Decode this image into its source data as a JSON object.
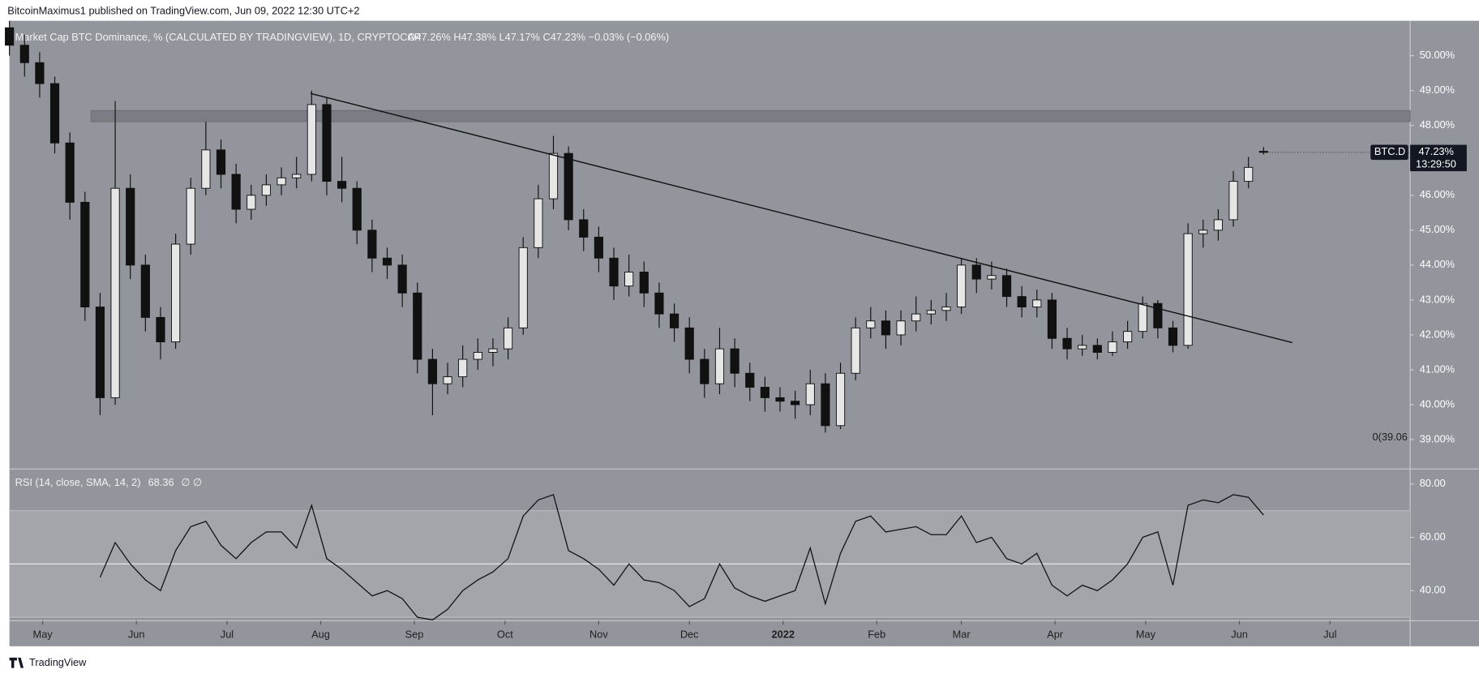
{
  "chart_data": {
    "type": "candlestick",
    "header": "BitcoinMaximus1 published on TradingView.com, Jun 09, 2022 12:30 UTC+2",
    "title": "Market Cap BTC Dominance, % (CALCULATED BY TRADINGVIEW), 1D, CRYPTOCAP",
    "ohlc_label": "O47.26% H47.38% L47.17% C47.23% −0.03% (−0.06%)",
    "footer": "TradingView",
    "x": [
      0,
      5,
      10,
      15,
      20,
      25,
      30,
      35,
      40,
      45,
      50,
      55,
      60,
      65,
      70,
      75,
      80,
      85,
      90,
      95,
      100,
      105,
      110,
      115,
      120,
      125,
      130,
      135,
      140,
      145,
      150,
      155,
      160,
      165,
      170,
      175,
      180,
      185,
      190,
      195,
      200,
      205,
      210,
      215,
      220,
      225,
      230,
      235,
      240,
      245,
      250,
      255,
      260,
      265,
      270,
      275,
      280,
      285,
      290,
      295,
      300,
      305,
      310,
      315,
      320,
      325,
      330,
      335,
      340,
      345,
      350,
      355,
      360,
      365,
      370,
      375,
      380,
      385,
      390,
      395,
      400,
      405,
      410,
      415
    ],
    "open": [
      50.8,
      50.3,
      49.8,
      49.2,
      47.5,
      45.8,
      42.8,
      40.2,
      46.2,
      44.0,
      42.5,
      41.8,
      44.6,
      46.2,
      47.3,
      46.6,
      45.6,
      46.0,
      46.3,
      46.5,
      46.6,
      48.6,
      46.4,
      46.2,
      45.0,
      44.2,
      44.0,
      43.2,
      41.3,
      40.6,
      40.8,
      41.3,
      41.5,
      41.6,
      42.2,
      44.5,
      45.9,
      47.2,
      45.3,
      44.8,
      44.2,
      43.4,
      43.8,
      43.2,
      42.6,
      42.2,
      41.3,
      40.6,
      41.6,
      40.9,
      40.5,
      40.2,
      40.1,
      40.0,
      40.6,
      39.4,
      40.9,
      42.2,
      42.4,
      42.0,
      42.4,
      42.6,
      42.7,
      42.8,
      44.0,
      43.6,
      43.7,
      43.1,
      42.8,
      43.0,
      41.9,
      41.6,
      41.7,
      41.5,
      41.8,
      42.1,
      42.9,
      42.2,
      41.7,
      44.9,
      45.0,
      45.3,
      46.4,
      47.26
    ],
    "high": [
      51.0,
      50.6,
      50.1,
      49.4,
      47.8,
      46.1,
      43.2,
      48.7,
      46.6,
      44.3,
      42.8,
      44.9,
      46.5,
      48.1,
      47.6,
      46.9,
      46.3,
      46.6,
      46.8,
      47.1,
      49.0,
      48.8,
      47.1,
      46.4,
      45.3,
      44.5,
      44.3,
      43.5,
      41.6,
      41.2,
      41.7,
      41.9,
      41.9,
      42.5,
      44.8,
      46.3,
      47.7,
      47.4,
      45.6,
      45.1,
      44.5,
      44.3,
      44.1,
      43.5,
      42.9,
      42.5,
      41.6,
      42.2,
      41.9,
      41.2,
      40.8,
      40.5,
      40.4,
      41.0,
      40.9,
      41.2,
      42.5,
      42.8,
      42.7,
      42.7,
      43.1,
      43.0,
      43.2,
      44.2,
      44.2,
      44.1,
      43.9,
      43.4,
      43.3,
      43.2,
      42.2,
      42.0,
      41.9,
      42.1,
      42.4,
      43.1,
      43.0,
      42.4,
      45.2,
      45.3,
      45.6,
      46.7,
      47.1,
      47.38
    ],
    "low": [
      50.0,
      49.4,
      48.8,
      47.2,
      45.3,
      42.4,
      39.7,
      40.0,
      43.6,
      42.1,
      41.3,
      41.6,
      44.3,
      46.0,
      46.2,
      45.2,
      45.3,
      45.7,
      46.0,
      46.2,
      46.4,
      46.0,
      45.8,
      44.6,
      43.8,
      43.6,
      42.8,
      40.9,
      39.7,
      40.3,
      40.5,
      41.0,
      41.1,
      41.3,
      42.0,
      44.2,
      45.6,
      45.0,
      44.4,
      43.8,
      43.0,
      43.1,
      42.8,
      42.2,
      41.8,
      40.9,
      40.2,
      40.3,
      40.5,
      40.1,
      39.8,
      39.8,
      39.6,
      39.7,
      39.2,
      39.3,
      40.7,
      41.9,
      41.6,
      41.7,
      42.1,
      42.3,
      42.4,
      42.6,
      43.2,
      43.3,
      42.8,
      42.5,
      42.5,
      41.6,
      41.3,
      41.4,
      41.3,
      41.4,
      41.6,
      41.9,
      41.9,
      41.5,
      41.6,
      44.5,
      44.7,
      45.1,
      46.2,
      47.17
    ],
    "close": [
      50.3,
      49.8,
      49.2,
      47.5,
      45.8,
      42.8,
      40.2,
      46.2,
      44.0,
      42.5,
      41.8,
      44.6,
      46.2,
      47.3,
      46.6,
      45.6,
      46.0,
      46.3,
      46.5,
      46.6,
      48.6,
      46.4,
      46.2,
      45.0,
      44.2,
      44.0,
      43.2,
      41.3,
      40.6,
      40.8,
      41.3,
      41.5,
      41.6,
      42.2,
      44.5,
      45.9,
      47.2,
      45.3,
      44.8,
      44.2,
      43.4,
      43.8,
      43.2,
      42.6,
      42.2,
      41.3,
      40.6,
      41.6,
      40.9,
      40.5,
      40.2,
      40.1,
      40.0,
      40.6,
      39.4,
      40.9,
      42.2,
      42.4,
      42.0,
      42.4,
      42.6,
      42.7,
      42.8,
      44.0,
      43.6,
      43.7,
      43.1,
      42.8,
      43.0,
      41.9,
      41.6,
      41.7,
      41.5,
      41.8,
      42.1,
      42.9,
      42.2,
      41.7,
      44.9,
      45.0,
      45.3,
      46.4,
      46.8,
      47.23
    ],
    "up_color": "#e6e6e6",
    "down_color": "#111111",
    "xlim": [
      0,
      463.5
    ],
    "xticks": [
      {
        "value": 11,
        "label": "May"
      },
      {
        "value": 42,
        "label": "Jun"
      },
      {
        "value": 72,
        "label": "Jul"
      },
      {
        "value": 103,
        "label": "Aug"
      },
      {
        "value": 134,
        "label": "Sep"
      },
      {
        "value": 164,
        "label": "Oct"
      },
      {
        "value": 195,
        "label": "Nov"
      },
      {
        "value": 225,
        "label": "Dec"
      },
      {
        "value": 256,
        "label": "2022"
      },
      {
        "value": 287,
        "label": "Feb"
      },
      {
        "value": 315,
        "label": "Mar"
      },
      {
        "value": 346,
        "label": "Apr"
      },
      {
        "value": 376,
        "label": "May"
      },
      {
        "value": 407,
        "label": "Jun"
      },
      {
        "value": 437,
        "label": "Jul"
      }
    ],
    "ylim": [
      38.16,
      51.0
    ],
    "yticks": [
      {
        "value": 39,
        "label": "39.00%"
      },
      {
        "value": 40,
        "label": "40.00%"
      },
      {
        "value": 41,
        "label": "41.00%"
      },
      {
        "value": 42,
        "label": "42.00%"
      },
      {
        "value": 43,
        "label": "43.00%"
      },
      {
        "value": 44,
        "label": "44.00%"
      },
      {
        "value": 45,
        "label": "45.00%"
      },
      {
        "value": 46,
        "label": "46.00%"
      },
      {
        "value": 47,
        "label": "47.00%"
      },
      {
        "value": 48,
        "label": "48.00%"
      },
      {
        "value": 49,
        "label": "49.00%"
      },
      {
        "value": 50,
        "label": "50.00%"
      }
    ],
    "trendline": {
      "x": [
        99.6,
        424.5
      ],
      "y": [
        48.92,
        41.78
      ]
    },
    "zone": {
      "x": [
        27,
        463.5
      ],
      "y": [
        48.11,
        48.43
      ]
    },
    "fib_level": {
      "value": 39.06,
      "label": "0(39.06"
    },
    "last_price": {
      "symbol": "BTC.D",
      "value": 47.23,
      "label": "47.23%",
      "countdown": "13:29:50"
    },
    "rsi": {
      "title": "RSI (14, close, SMA, 14, 2)",
      "value_label": "68.36",
      "flags": "∅ ∅",
      "color": "#111111",
      "values": [
        null,
        null,
        null,
        null,
        null,
        null,
        45,
        58,
        50,
        44,
        40,
        55,
        64,
        66,
        57,
        52,
        58,
        62,
        62,
        56,
        72,
        52,
        48,
        43,
        38,
        40,
        37,
        30,
        29,
        33,
        40,
        44,
        47,
        52,
        68,
        74,
        76,
        55,
        52,
        48,
        42,
        50,
        44,
        43,
        40,
        34,
        37,
        50,
        41,
        38,
        36,
        38,
        40,
        56,
        35,
        54,
        66,
        68,
        62,
        63,
        64,
        61,
        61,
        68,
        58,
        60,
        52,
        50,
        54,
        42,
        38,
        42,
        40,
        44,
        50,
        60,
        62,
        42,
        72,
        74,
        73,
        76,
        75,
        68.36
      ],
      "ylim": [
        28.67,
        85.66
      ],
      "yticks": [
        {
          "value": 40,
          "label": "40.00"
        },
        {
          "value": 60,
          "label": "60.00"
        },
        {
          "value": 80,
          "label": "80.00"
        }
      ],
      "band": [
        30,
        70
      ],
      "midline": 50
    }
  }
}
